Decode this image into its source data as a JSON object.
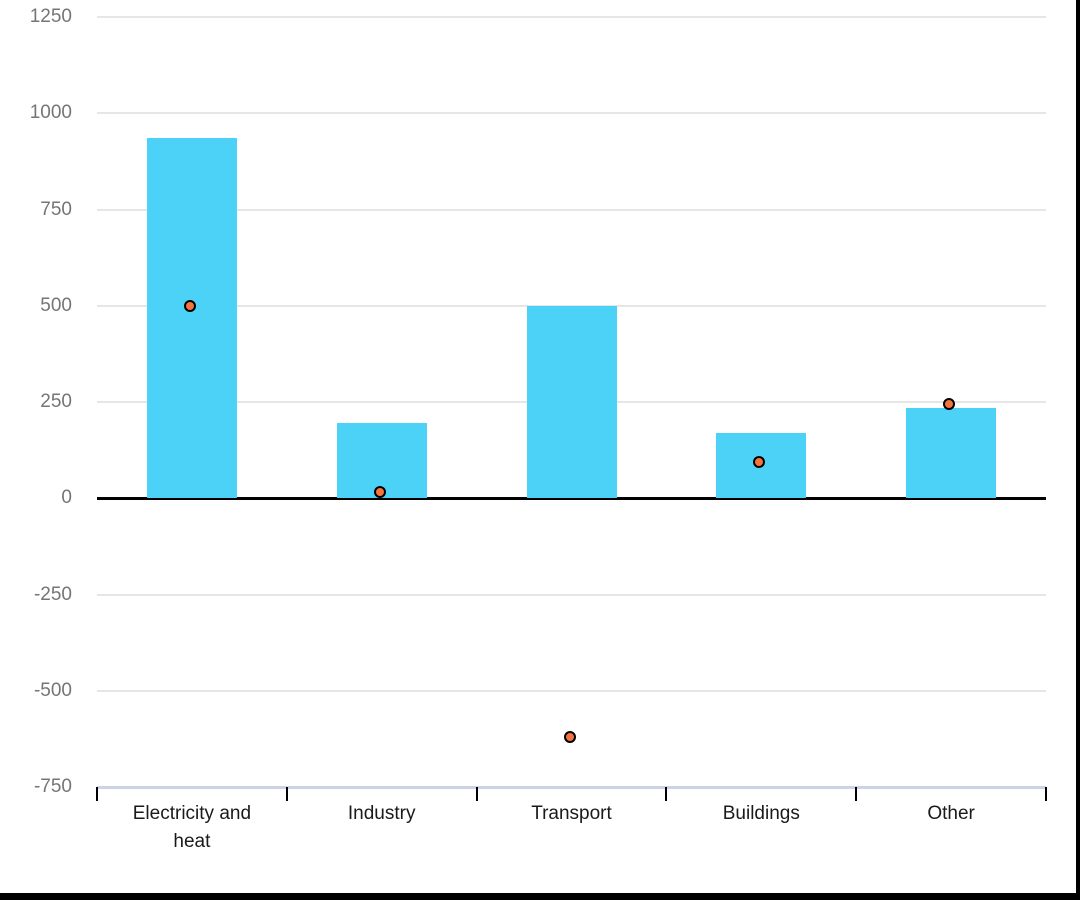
{
  "chart_data": {
    "type": "bar",
    "subtype": "combo bar with scatter points overlay",
    "title": "",
    "xlabel": "",
    "ylabel": "",
    "categories": [
      "Electricity and heat",
      "Industry",
      "Transport",
      "Buildings",
      "Other"
    ],
    "series": [
      {
        "name": "bars",
        "type": "bar",
        "color": "#4dd2f7",
        "values": [
          935,
          195,
          500,
          170,
          235
        ]
      },
      {
        "name": "points",
        "type": "scatter",
        "fill": "#f4743e",
        "stroke": "#000000",
        "values": [
          495,
          10,
          -625,
          90,
          240
        ]
      }
    ],
    "ylim": [
      -750,
      1250
    ],
    "ytick_step": 250,
    "ytick_labels": [
      "1250",
      "1000",
      "750",
      "500",
      "250",
      "0",
      "-250",
      "-500",
      "-750"
    ],
    "grid": true,
    "legend": "none"
  },
  "styles": {
    "background": "#ffffff",
    "bar_color": "#4dd2f7",
    "point_fill": "#f4743e",
    "point_stroke": "#000000",
    "grid_color": "#e6e6e6",
    "zero_line_color": "#000000",
    "baseline_color": "#cad3e8",
    "tick_color": "#000000",
    "y_label_color": "#757575",
    "x_label_color": "#1a1a1a",
    "frame_border_color": "#000000"
  }
}
